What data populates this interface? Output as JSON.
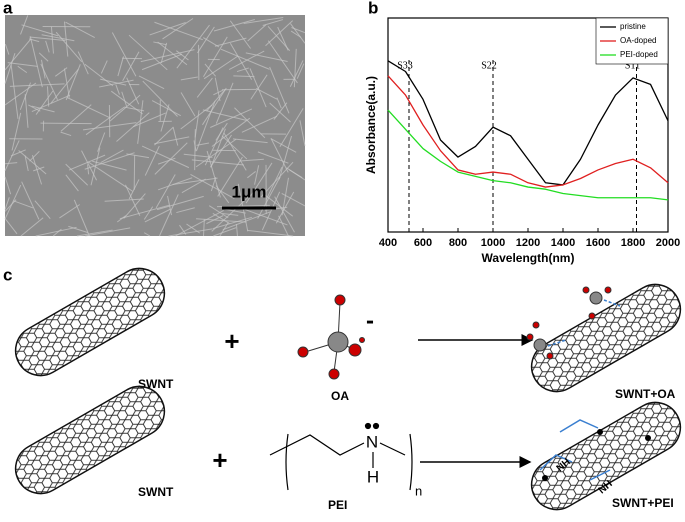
{
  "panel_labels": [
    "a",
    "b",
    "c"
  ],
  "scale_bar": "1μm",
  "chart_data": {
    "type": "line",
    "xlabel": "Wavelength(nm)",
    "ylabel": "Absorbance(a.u.)",
    "x": [
      400,
      500,
      600,
      700,
      800,
      900,
      1000,
      1100,
      1200,
      1300,
      1400,
      1500,
      1600,
      1700,
      1800,
      1900,
      2000
    ],
    "series": [
      {
        "name": "pristine",
        "color": "#000000",
        "values": [
          0.8,
          0.75,
          0.62,
          0.43,
          0.35,
          0.4,
          0.49,
          0.45,
          0.34,
          0.23,
          0.22,
          0.34,
          0.5,
          0.64,
          0.72,
          0.69,
          0.52
        ]
      },
      {
        "name": "OA-doped",
        "color": "#e02020",
        "values": [
          0.73,
          0.64,
          0.5,
          0.38,
          0.29,
          0.27,
          0.28,
          0.27,
          0.23,
          0.21,
          0.22,
          0.25,
          0.29,
          0.32,
          0.34,
          0.3,
          0.23
        ]
      },
      {
        "name": "PEI-doped",
        "color": "#22dd22",
        "values": [
          0.57,
          0.48,
          0.39,
          0.33,
          0.28,
          0.26,
          0.24,
          0.23,
          0.21,
          0.2,
          0.18,
          0.17,
          0.16,
          0.16,
          0.16,
          0.16,
          0.15
        ]
      }
    ],
    "xlim": [
      400,
      2000
    ],
    "xticks": [
      400,
      600,
      800,
      1000,
      1200,
      1400,
      1600,
      1800,
      2000
    ],
    "ylim": [
      0,
      1
    ],
    "legend": "upper right",
    "annotations": [
      {
        "text": "S33",
        "x": 520
      },
      {
        "text": "S22",
        "x": 1000
      },
      {
        "text": "S11",
        "x": 1820
      }
    ]
  },
  "scheme": {
    "rows": [
      {
        "reactant": "SWNT",
        "plus": "+",
        "reagent": "OA",
        "charge": "-",
        "product": "SWNT+OA"
      },
      {
        "reactant": "SWNT",
        "plus": "+",
        "reagent": "PEI",
        "product": "SWNT+PEI",
        "nitrogen": "N",
        "hydrogen": "H",
        "subscript": "n",
        "amine": "NH"
      }
    ]
  }
}
